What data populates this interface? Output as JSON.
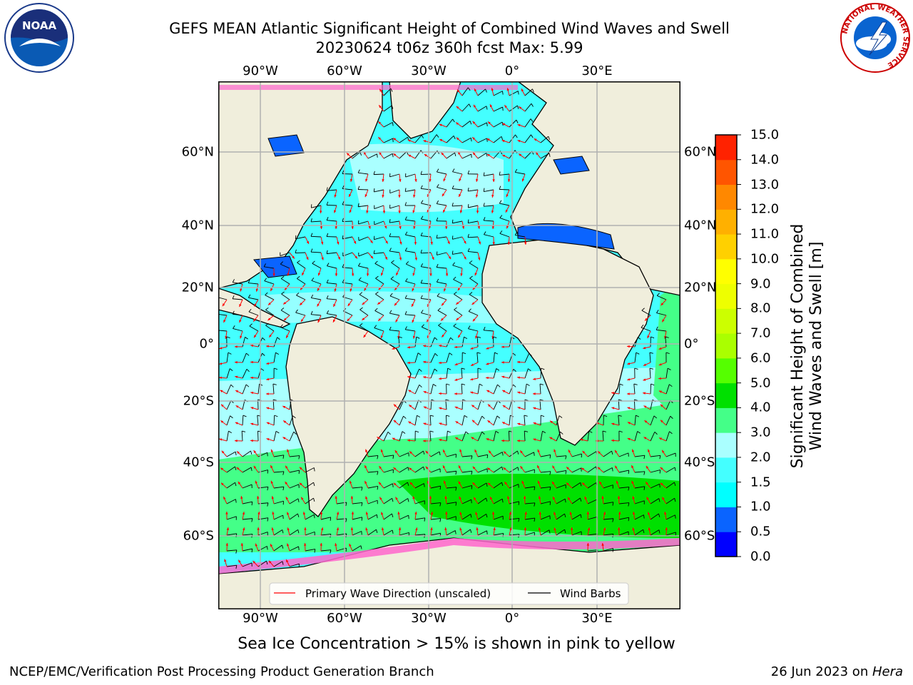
{
  "title_line1": "GEFS MEAN Atlantic Significant Height of Combined Wind Waves and Swell",
  "title_line2": "20230624 t06z 360h fcst   Max: 5.99",
  "lon_labels": [
    "90°W",
    "60°W",
    "30°W",
    "0°",
    "30°E"
  ],
  "lat_labels": [
    "60°N",
    "40°N",
    "20°N",
    "0°",
    "20°S",
    "40°S",
    "60°S"
  ],
  "colorbar": {
    "label_line1": "Significant Height of Combined",
    "label_line2": "Wind Waves and Swell [m]",
    "ticks": [
      "0.0",
      "0.5",
      "1.0",
      "1.5",
      "2.0",
      "3.0",
      "4.0",
      "5.0",
      "6.0",
      "7.0",
      "8.0",
      "9.0",
      "10.0",
      "11.0",
      "12.0",
      "13.0",
      "14.0",
      "15.0"
    ],
    "colors": [
      "#0000ff",
      "#0a64ff",
      "#00ffff",
      "#44ffff",
      "#aaffff",
      "#44ff88",
      "#00e000",
      "#55ff00",
      "#aaff00",
      "#ccff00",
      "#eeff00",
      "#ffff00",
      "#ffd000",
      "#ffb000",
      "#ff8800",
      "#ff5500",
      "#ff2200"
    ]
  },
  "legend": {
    "wave_direction": "Primary Wave Direction (unscaled)",
    "wind_barbs": "Wind Barbs"
  },
  "sea_ice_note": "Sea Ice Concentration > 15% is shown in pink to yellow",
  "footer_left": "NCEP/EMC/Verification Post Processing Product Generation Branch",
  "footer_date": "26 Jun 2023 on ",
  "footer_host": "Hera",
  "logos": {
    "noaa_text": "NOAA",
    "nws_text": "NATIONAL WEATHER SERVICE"
  },
  "colors": {
    "land": "#f0eedc",
    "ocean_calm": "#44ffff",
    "ocean_mid": "#aaffff",
    "ocean_high": "#44ff88",
    "ocean_peak": "#00e000",
    "ice": "#ff66cc",
    "arrow": "#ff0000",
    "barb": "#000000",
    "grid": "#b0b0b0"
  }
}
